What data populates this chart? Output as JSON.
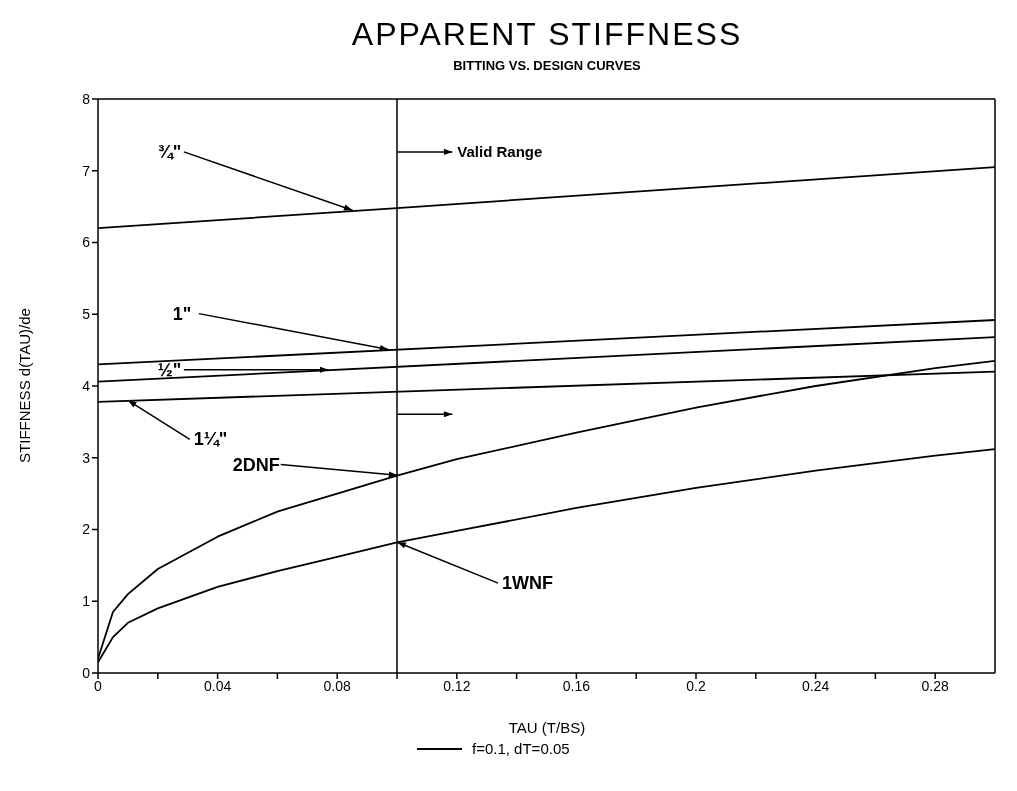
{
  "chart_data": {
    "type": "line",
    "title": "APPARENT STIFFNESS",
    "subtitle": "BITTING VS. DESIGN CURVES",
    "xlabel": "TAU (T/BS)",
    "ylabel": "STIFFNESS d(TAU)/de",
    "xlim": [
      0,
      0.3
    ],
    "xticks": [
      0,
      {
        "value": 0.02,
        "label": null
      },
      0.04,
      {
        "value": 0.06,
        "label": null
      },
      0.08,
      {
        "value": 0.1,
        "label": null
      },
      0.12,
      {
        "value": 0.14,
        "label": null
      },
      0.16,
      {
        "value": 0.18,
        "label": null
      },
      0.2,
      {
        "value": 0.22,
        "label": null
      },
      0.24,
      {
        "value": 0.26,
        "label": null
      },
      0.28
    ],
    "ylim": [
      0,
      8
    ],
    "yticks": [
      0,
      1,
      2,
      3,
      4,
      5,
      6,
      7,
      8
    ],
    "grid": false,
    "marker": "none",
    "line_style": "solid",
    "series": [
      {
        "name": "¾\"",
        "color": "#000000",
        "x": [
          0,
          0.1,
          0.3
        ],
        "values": [
          6.2,
          6.48,
          7.05
        ]
      },
      {
        "name": "1\"",
        "color": "#000000",
        "x": [
          0,
          0.3
        ],
        "values": [
          4.3,
          4.92
        ]
      },
      {
        "name": "½\"",
        "color": "#000000",
        "x": [
          0,
          0.3
        ],
        "values": [
          4.06,
          4.68
        ]
      },
      {
        "name": "1¼\"",
        "color": "#000000",
        "x": [
          0,
          0.3
        ],
        "values": [
          3.78,
          4.2
        ]
      },
      {
        "name": "2DNF",
        "color": "#000000",
        "x": [
          0,
          0.005,
          0.01,
          0.02,
          0.04,
          0.06,
          0.08,
          0.1,
          0.12,
          0.16,
          0.2,
          0.24,
          0.28,
          0.3
        ],
        "values": [
          0.2,
          0.85,
          1.1,
          1.45,
          1.9,
          2.25,
          2.5,
          2.75,
          2.98,
          3.35,
          3.7,
          4.0,
          4.25,
          4.35
        ]
      },
      {
        "name": "1WNF",
        "color": "#000000",
        "x": [
          0,
          0.005,
          0.01,
          0.02,
          0.04,
          0.06,
          0.08,
          0.1,
          0.12,
          0.16,
          0.2,
          0.24,
          0.28,
          0.3
        ],
        "values": [
          0.15,
          0.5,
          0.7,
          0.9,
          1.2,
          1.42,
          1.62,
          1.82,
          1.98,
          2.3,
          2.58,
          2.82,
          3.03,
          3.12
        ]
      }
    ],
    "ref_lines": [
      {
        "axis": "x",
        "value": 0.1,
        "label": "Valid Range",
        "color": "#000000"
      }
    ],
    "annotations": [
      "f=0.1, dT=0.05"
    ]
  }
}
